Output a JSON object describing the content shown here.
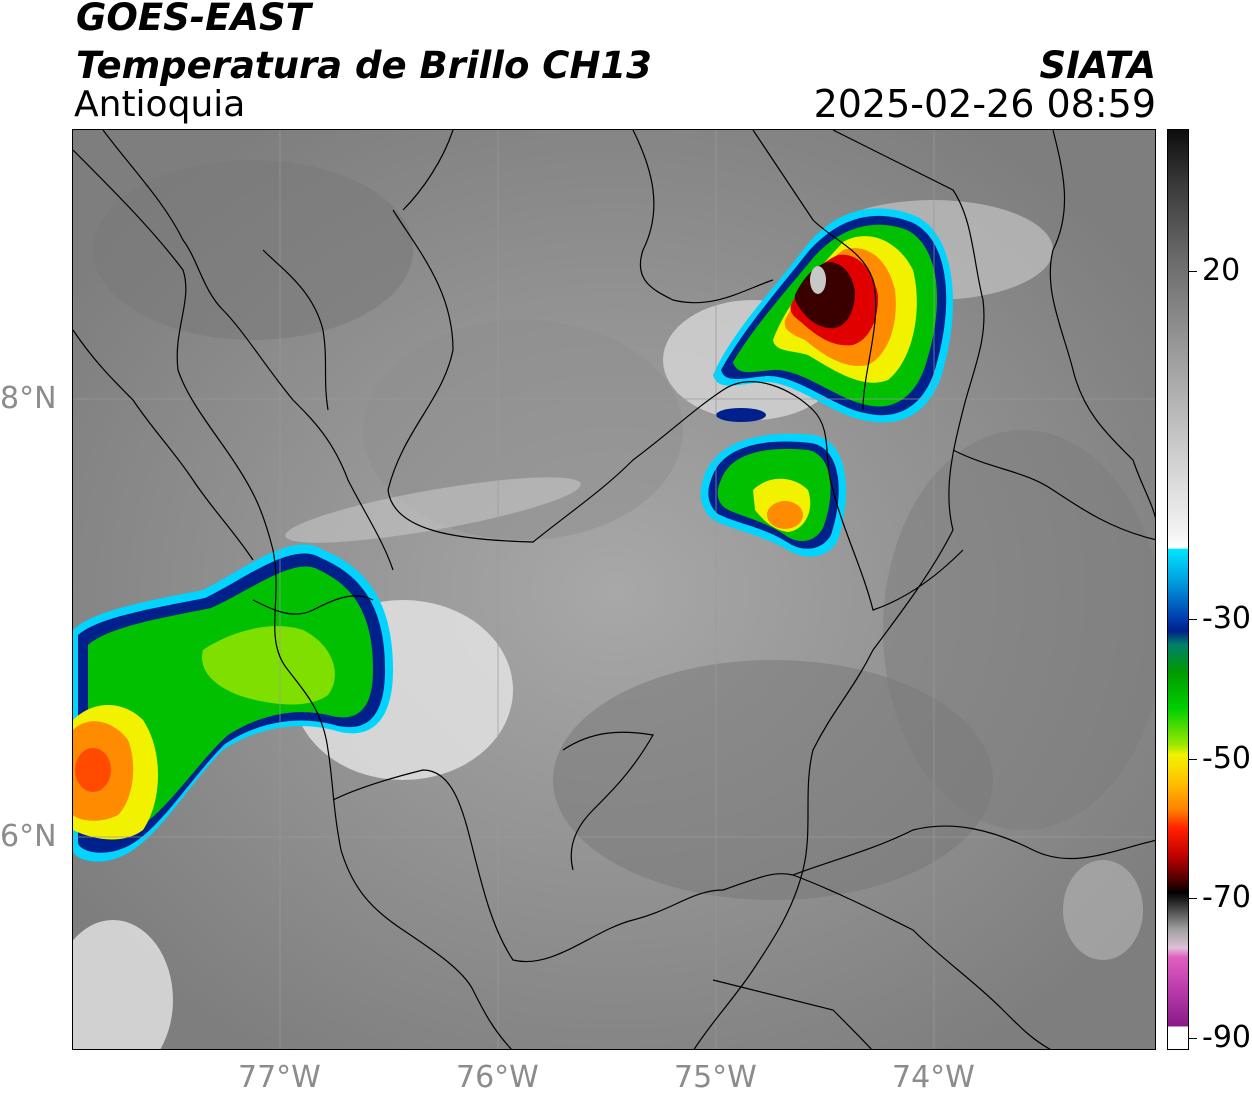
{
  "header": {
    "satellite": "GOES-EAST",
    "product": "Temperatura de Brillo CH13",
    "region": "Antioquia",
    "organization": "SIATA",
    "datetime": "2025-02-26 08:59"
  },
  "map": {
    "extent_lon": [
      -77.95,
      -72.95
    ],
    "extent_lat": [
      5.05,
      9.25
    ],
    "lat_labels": [
      "8°N",
      "6°N"
    ],
    "lon_labels": [
      "77°W",
      "76°W",
      "75°W",
      "74°W"
    ],
    "gridlines": true,
    "borders": "departments"
  },
  "colorbar": {
    "labels": [
      "20",
      "-30",
      "-50",
      "-70",
      "-90"
    ],
    "colors": {
      "warm_gray_top": "#0d0d0d",
      "gray_mid": "#9a9a9a",
      "white": "#ffffff",
      "cyan": "#00d4ff",
      "blue": "#00208c",
      "green": "#00c000",
      "yellow": "#f2f200",
      "orange": "#ff8c00",
      "red": "#e00000",
      "dark_red": "#3a0000",
      "black": "#000000",
      "pink": "#e060c0",
      "purple": "#8a1a8a"
    }
  }
}
